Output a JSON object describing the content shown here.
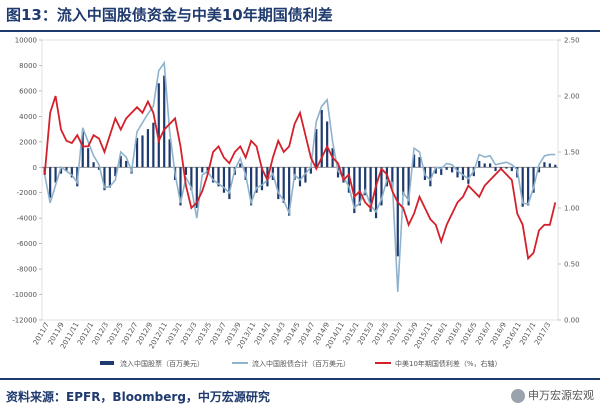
{
  "title": "图13：流入中国股债资金与中美10年期国债利差",
  "source": "资料来源：EPFR，Bloomberg，中万宏源研究",
  "logo_text": "申万宏源宏观",
  "colors": {
    "bars": "#1f3a6e",
    "line_total": "#8fb3cc",
    "line_spread": "#d4202a",
    "axis": "#999999"
  },
  "chart_data": {
    "type": "bar+line",
    "title": "",
    "left_axis": {
      "ylim": [
        -12000,
        10000
      ],
      "ticks": [
        10000,
        8000,
        6000,
        4000,
        2000,
        0,
        -2000,
        -4000,
        -6000,
        -8000,
        -10000,
        -12000
      ]
    },
    "right_axis": {
      "ylim": [
        0,
        2.5
      ],
      "ticks": [
        "2.50",
        "2.00",
        "1.50",
        "1.00",
        "0.50",
        "0.00"
      ]
    },
    "x_labels": [
      "2011/7",
      "2011/9",
      "2011/11",
      "2012/1",
      "2012/3",
      "2012/5",
      "2012/7",
      "2012/9",
      "2012/11",
      "2013/1",
      "2013/3",
      "2013/5",
      "2013/7",
      "2013/9",
      "2013/11",
      "2014/1",
      "2014/3",
      "2014/5",
      "2014/7",
      "2014/9",
      "2014/11",
      "2015/1",
      "2015/3",
      "2015/5",
      "2015/7",
      "2015/9",
      "2015/11",
      "2016/1",
      "2016/3",
      "2016/5",
      "2016/7",
      "2016/9",
      "2016/11",
      "2017/1",
      "2017/3"
    ],
    "series": [
      {
        "name": "流入中国股票（百万美元）",
        "type": "bar",
        "axis": "left",
        "values": [
          -600,
          -2400,
          -1200,
          -500,
          -300,
          -800,
          -1500,
          2800,
          1500,
          400,
          -200,
          -1800,
          -1600,
          -700,
          900,
          500,
          -500,
          2300,
          2500,
          3000,
          3500,
          6600,
          7200,
          2200,
          -1000,
          -3000,
          -600,
          -1800,
          -3200,
          -400,
          -500,
          -1200,
          -1500,
          -2000,
          -2500,
          -600,
          300,
          -1000,
          -3000,
          -2000,
          -1800,
          -1500,
          -1000,
          -2500,
          -2800,
          -3800,
          -1000,
          -1500,
          -1200,
          -500,
          3000,
          4500,
          3600,
          1500,
          -800,
          -1200,
          -2000,
          -3600,
          -3000,
          -2200,
          -3500,
          -4000,
          -3000,
          -1500,
          -1600,
          -7000,
          -2200,
          -3000,
          1000,
          800,
          -1000,
          -1500,
          -500,
          -600,
          -200,
          -400,
          -800,
          -1000,
          -1300,
          -700,
          500,
          300,
          300,
          -300,
          -200,
          -100,
          -300,
          -800,
          -3100,
          -3000,
          -2000,
          -400,
          400,
          300,
          200
        ]
      },
      {
        "name": "流入中国股债合计（百万美元）",
        "type": "line",
        "axis": "left",
        "values": [
          -600,
          -2800,
          -1400,
          0,
          -300,
          -600,
          -1200,
          3100,
          2000,
          900,
          200,
          -1600,
          -1500,
          -1000,
          1200,
          800,
          -300,
          2800,
          3500,
          4200,
          4800,
          7600,
          8200,
          2800,
          -500,
          -2800,
          -800,
          -1600,
          -4000,
          -600,
          -300,
          -1000,
          -1300,
          -1600,
          -2000,
          -200,
          700,
          -600,
          -2800,
          -1600,
          -1400,
          -1000,
          -500,
          -2000,
          -2600,
          -3600,
          -600,
          -1000,
          -500,
          0,
          3600,
          4800,
          5300,
          2000,
          -300,
          -800,
          -1500,
          -3200,
          -2800,
          -1800,
          -3000,
          -3500,
          -2500,
          -1000,
          -1200,
          -9800,
          -2000,
          -2600,
          1500,
          1200,
          -600,
          -1000,
          0,
          -100,
          300,
          200,
          -300,
          -600,
          -900,
          -300,
          1000,
          800,
          900,
          200,
          300,
          400,
          200,
          -200,
          -2800,
          -2900,
          -1600,
          200,
          900,
          1000,
          1000
        ]
      },
      {
        "name": "中美10年期国债利差（%，右轴）",
        "type": "line",
        "axis": "right",
        "values": [
          1.3,
          1.85,
          2.0,
          1.7,
          1.6,
          1.58,
          1.65,
          1.55,
          1.55,
          1.65,
          1.62,
          1.5,
          1.65,
          1.8,
          1.7,
          1.8,
          1.85,
          1.9,
          1.85,
          1.95,
          1.85,
          1.6,
          1.7,
          1.75,
          1.8,
          1.55,
          1.2,
          1.0,
          1.05,
          1.15,
          1.3,
          1.5,
          1.55,
          1.45,
          1.4,
          1.5,
          1.55,
          1.45,
          1.6,
          1.55,
          1.35,
          1.25,
          1.45,
          1.6,
          1.5,
          1.55,
          1.75,
          1.85,
          1.65,
          1.45,
          1.35,
          1.45,
          1.55,
          1.45,
          1.4,
          1.25,
          1.3,
          1.1,
          1.15,
          1.05,
          1.0,
          1.2,
          1.35,
          1.3,
          1.15,
          1.05,
          1.0,
          0.85,
          0.95,
          1.1,
          1.0,
          0.9,
          0.85,
          0.7,
          0.85,
          0.95,
          1.05,
          1.1,
          1.2,
          1.15,
          1.1,
          1.2,
          1.25,
          1.3,
          1.35,
          1.3,
          1.25,
          0.95,
          0.85,
          0.55,
          0.6,
          0.8,
          0.85,
          0.85,
          1.05
        ]
      }
    ]
  }
}
